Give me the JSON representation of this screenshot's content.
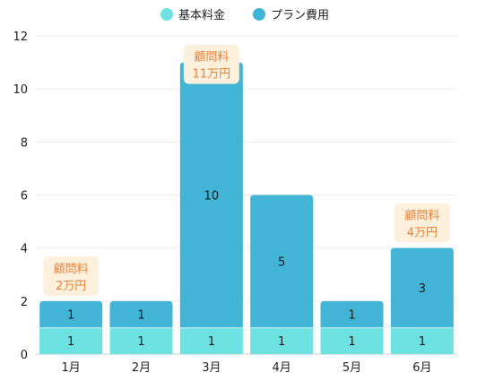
{
  "chart_data": {
    "type": "bar",
    "stacked": true,
    "categories": [
      "1月",
      "2月",
      "3月",
      "4月",
      "5月",
      "6月"
    ],
    "series": [
      {
        "name": "基本料金",
        "values": [
          1,
          1,
          1,
          1,
          1,
          1
        ],
        "color": "#6ee2e2"
      },
      {
        "name": "プラン費用",
        "values": [
          1,
          1,
          10,
          5,
          1,
          3
        ],
        "color": "#42b5d6"
      }
    ],
    "ylim": [
      0,
      12
    ],
    "yticks": [
      0,
      2,
      4,
      6,
      8,
      10,
      12
    ],
    "grid": true,
    "legend": "top-center",
    "annotations": [
      {
        "category": "1月",
        "line1": "顧問料",
        "line2": "2万円"
      },
      {
        "category": "3月",
        "line1": "顧問料",
        "line2": "11万円"
      },
      {
        "category": "6月",
        "line1": "顧問料",
        "line2": "4万円"
      }
    ],
    "annotation_style": {
      "background": "#fdf1de",
      "text_color": "#e8843a"
    }
  }
}
